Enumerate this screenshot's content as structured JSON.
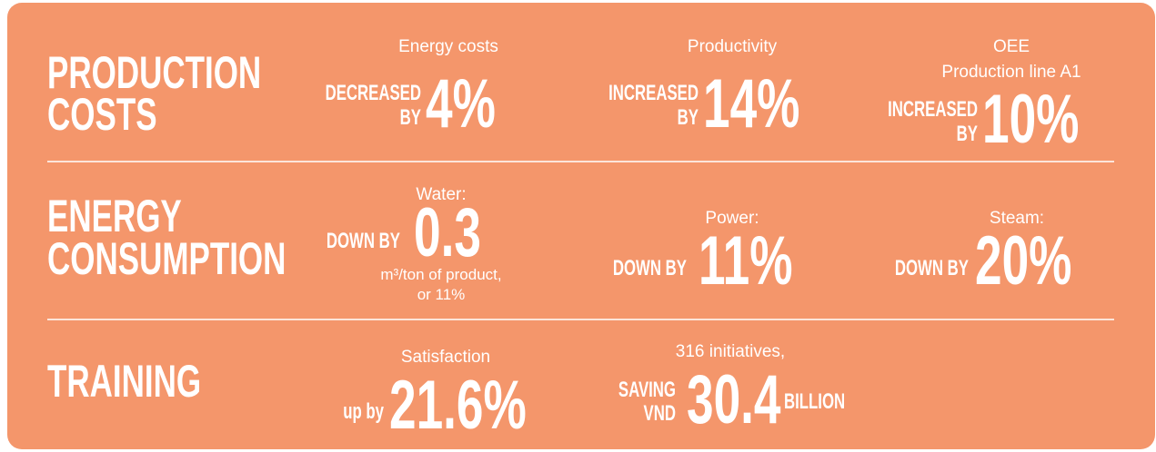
{
  "rows": [
    {
      "label": [
        "PRODUCTION",
        "COSTS"
      ],
      "items": [
        {
          "title": [
            "Energy costs"
          ],
          "prefix": [
            "DECREASED",
            "BY"
          ],
          "value": "4%"
        },
        {
          "title": [
            "Productivity"
          ],
          "prefix": [
            "INCREASED",
            "BY"
          ],
          "value": "14%"
        },
        {
          "title": [
            "OEE",
            "Production line A1"
          ],
          "prefix": [
            "INCREASED",
            "BY"
          ],
          "value": "10%"
        }
      ]
    },
    {
      "label": [
        "ENERGY",
        "CONSUMPTION"
      ],
      "items": [
        {
          "title": [
            "Water:"
          ],
          "prefix": [
            "DOWN BY"
          ],
          "value": "0.3",
          "note": [
            "m³/ton of product,",
            "or 11%"
          ]
        },
        {
          "title": [
            "Power:"
          ],
          "prefix": [
            "DOWN BY"
          ],
          "value": "11%"
        },
        {
          "title": [
            "Steam:"
          ],
          "prefix": [
            "DOWN BY"
          ],
          "value": "20%"
        }
      ]
    },
    {
      "label": [
        "TRAINING"
      ],
      "items": [
        {
          "title": [
            "Satisfaction"
          ],
          "prefix": [
            "up by"
          ],
          "value": "21.6%"
        },
        {
          "title": [
            "316 initiatives,"
          ],
          "prefix": [
            "SAVING",
            "VND"
          ],
          "value": "30.4",
          "suffix": [
            "BILLION"
          ]
        }
      ]
    }
  ]
}
